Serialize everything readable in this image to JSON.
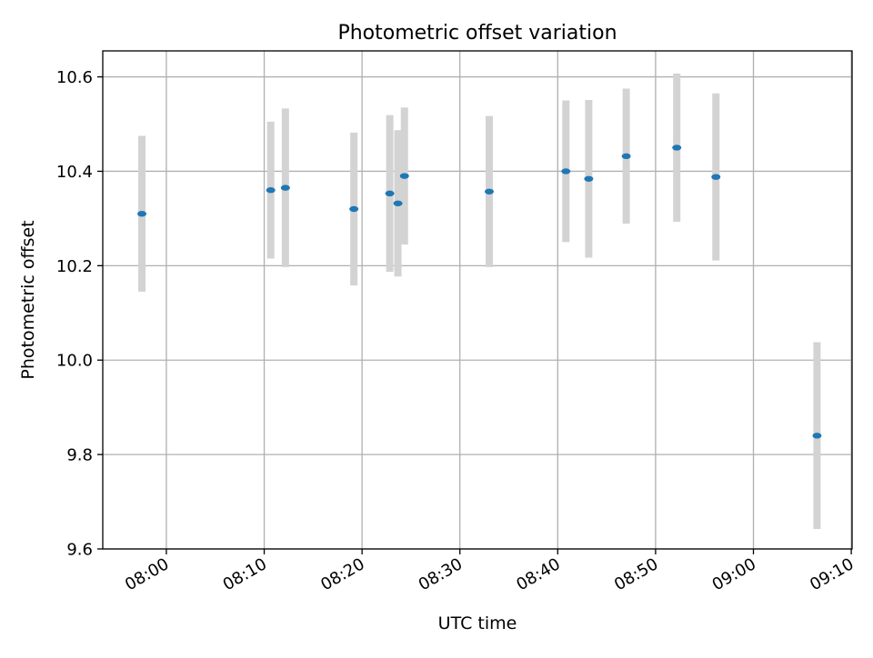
{
  "chart_data": {
    "type": "scatter",
    "title": "Photometric offset variation",
    "xlabel": "UTC time",
    "ylabel": "Photometric offset",
    "x_ticks": [
      "08:00",
      "08:10",
      "08:20",
      "08:30",
      "08:40",
      "08:50",
      "09:00",
      "09:10"
    ],
    "y_ticks": [
      "9.6",
      "9.8",
      "10.0",
      "10.2",
      "10.4",
      "10.6"
    ],
    "xlim": [
      "07:53:30",
      "09:10:05"
    ],
    "ylim": [
      9.6,
      10.655
    ],
    "grid": true,
    "legend": "none",
    "colors": {
      "marker": "#1f77b4",
      "errorbar": "#d3d3d3",
      "grid": "#b0b0b0"
    },
    "points": [
      {
        "x": "07:57:30",
        "y": 10.31,
        "yerr": 0.165
      },
      {
        "x": "08:10:40",
        "y": 10.36,
        "yerr": 0.145
      },
      {
        "x": "08:12:10",
        "y": 10.365,
        "yerr": 0.168
      },
      {
        "x": "08:19:10",
        "y": 10.32,
        "yerr": 0.162
      },
      {
        "x": "08:22:50",
        "y": 10.353,
        "yerr": 0.166
      },
      {
        "x": "08:23:40",
        "y": 10.332,
        "yerr": 0.155
      },
      {
        "x": "08:24:20",
        "y": 10.39,
        "yerr": 0.145
      },
      {
        "x": "08:33:00",
        "y": 10.357,
        "yerr": 0.16
      },
      {
        "x": "08:40:50",
        "y": 10.4,
        "yerr": 0.15
      },
      {
        "x": "08:43:10",
        "y": 10.384,
        "yerr": 0.167
      },
      {
        "x": "08:47:00",
        "y": 10.432,
        "yerr": 0.143
      },
      {
        "x": "08:52:10",
        "y": 10.45,
        "yerr": 0.157
      },
      {
        "x": "08:56:10",
        "y": 10.388,
        "yerr": 0.177
      },
      {
        "x": "09:06:30",
        "y": 9.84,
        "yerr": 0.198
      }
    ]
  }
}
